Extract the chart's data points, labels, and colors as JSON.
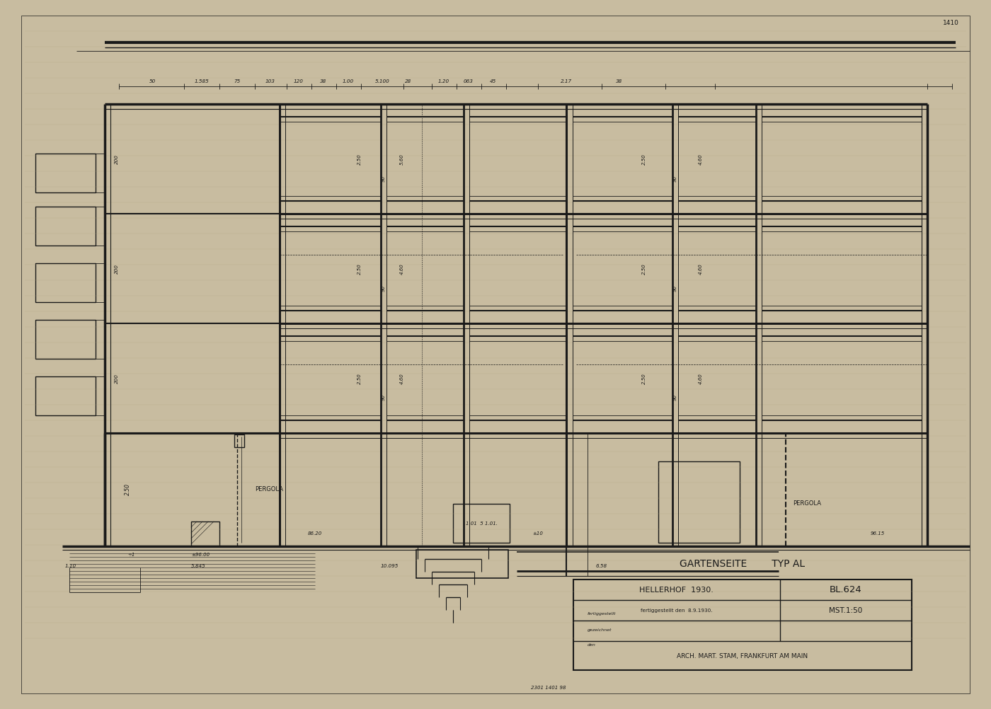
{
  "bg_color": "#c8bca0",
  "paper_color": "#e5d9bf",
  "line_color": "#1a1a1a",
  "title_line1": "GARTENSEITE        TYP AL",
  "title_hellerhof": "HELLERHOF  1930.",
  "title_bl": "BL.624",
  "title_date": "fertiggestellt den  8.9.1930.",
  "title_mst": "MST.1:50",
  "title_arch": "ARCH. MART. STAM, FRANKFURT AM MAIN",
  "page_num": "1410",
  "figsize": [
    14.0,
    10.02
  ],
  "dpi": 100
}
